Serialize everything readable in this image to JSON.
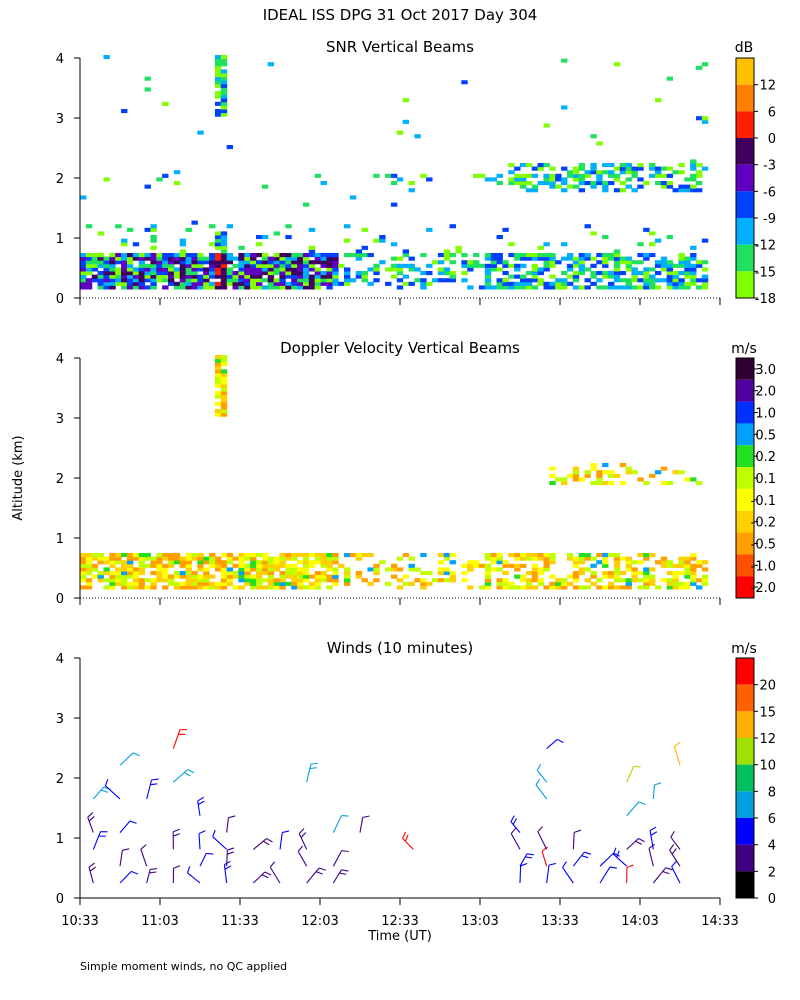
{
  "title": "IDEAL ISS DPG  31 Oct 2017 Day 304",
  "footer_note": "Simple moment winds, no QC applied",
  "y_axis_label": "Altitude (km)",
  "x_axis_label": "Time (UT)",
  "chart_data": [
    {
      "type": "heatmap",
      "title": "SNR Vertical Beams",
      "units": "dB",
      "ylim": [
        0,
        4
      ],
      "yticks": [
        "0",
        "1",
        "2",
        "3",
        "4"
      ],
      "xlim_minutes": [
        0,
        240
      ],
      "colorbar": {
        "labels": [
          "12",
          "6",
          "0",
          "-3",
          "-6",
          "-9",
          "-12",
          "-15",
          "-18"
        ],
        "colors": [
          "#ffc000",
          "#ff8000",
          "#ff2000",
          "#400060",
          "#6000c0",
          "#0040ff",
          "#00b0ff",
          "#20e060",
          "#80ff00"
        ]
      },
      "features": [
        {
          "t0": 0,
          "t1": 235,
          "z0": 0.15,
          "z1": 0.75,
          "level": "low-layer"
        },
        {
          "t0": 50,
          "t1": 53,
          "z0": 3.0,
          "z1": 4.0,
          "level": "column-at-1123"
        },
        {
          "t0": 175,
          "t1": 235,
          "z0": 1.8,
          "z1": 2.2,
          "level": "elevated-layer"
        }
      ]
    },
    {
      "type": "heatmap",
      "title": "Doppler Velocity Vertical Beams",
      "units": "m/s",
      "ylim": [
        0,
        4
      ],
      "yticks": [
        "0",
        "1",
        "2",
        "3",
        "4"
      ],
      "xlim_minutes": [
        0,
        240
      ],
      "colorbar": {
        "labels": [
          "3.0",
          "2.0",
          "1.0",
          "0.5",
          "0.2",
          "0.1",
          "-0.1",
          "-0.2",
          "-0.5",
          "-1.0",
          "-2.0"
        ],
        "colors": [
          "#300030",
          "#5000a0",
          "#0030ff",
          "#00a0ff",
          "#20e020",
          "#c0ff00",
          "#ffff00",
          "#ffd000",
          "#ffa000",
          "#ff5000",
          "#ff0000"
        ]
      }
    },
    {
      "type": "scatter",
      "title": "Winds (10 minutes)",
      "units": "m/s",
      "ylim": [
        0,
        4
      ],
      "yticks": [
        "0",
        "1",
        "2",
        "3",
        "4"
      ],
      "xticks": [
        "10:33",
        "11:03",
        "11:33",
        "12:03",
        "12:33",
        "13:03",
        "13:33",
        "14:03",
        "14:33"
      ],
      "xlim_minutes": [
        0,
        240
      ],
      "colorbar": {
        "labels": [
          "20",
          "15",
          "12",
          "10",
          "8",
          "6",
          "4",
          "2",
          "0"
        ],
        "colors": [
          "#ff0000",
          "#ff6000",
          "#ffb000",
          "#a0e000",
          "#00c060",
          "#00a0e0",
          "#0000ff",
          "#400080",
          "#000000"
        ]
      }
    }
  ]
}
